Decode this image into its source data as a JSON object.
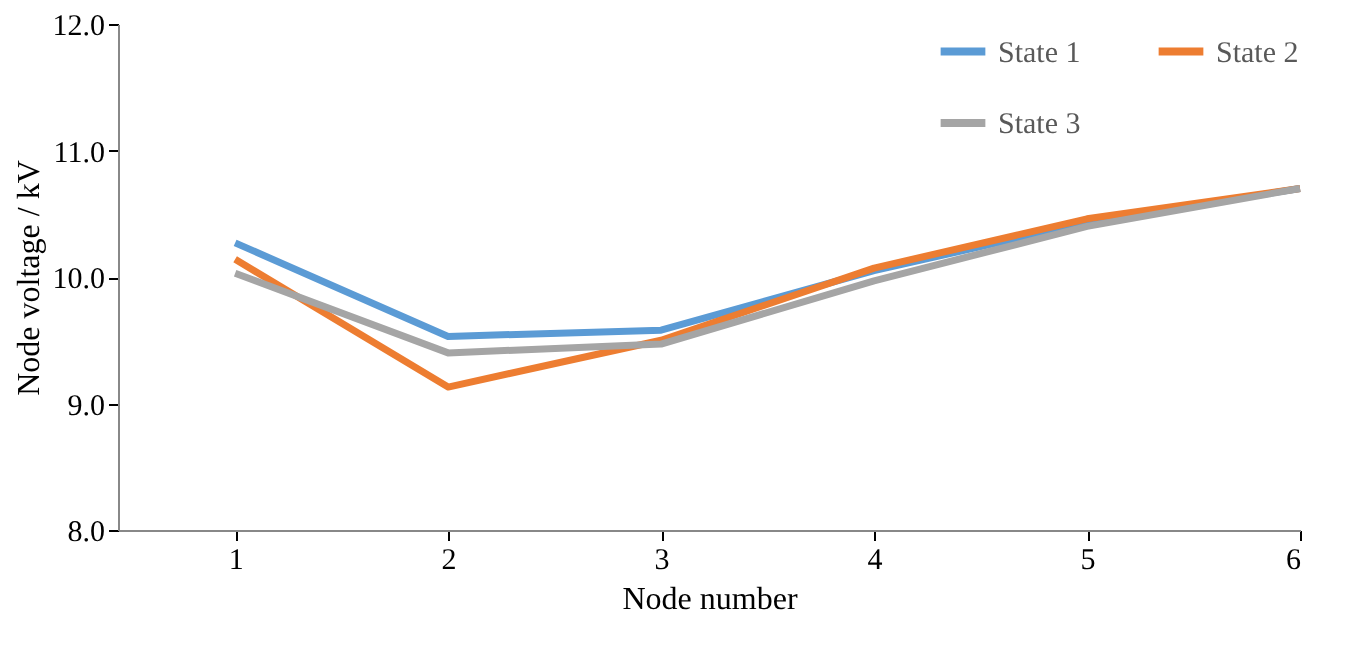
{
  "chart_data": {
    "type": "line",
    "xlabel": "Node number",
    "ylabel": "Node voltage / kV",
    "x": [
      1,
      2,
      3,
      4,
      5,
      6
    ],
    "xlim": [
      0.45,
      6
    ],
    "xticks": [
      1,
      2,
      3,
      4,
      5,
      6
    ],
    "ylim": [
      8,
      12
    ],
    "yticks": [
      {
        "value": 8,
        "label": "8.0"
      },
      {
        "value": 9,
        "label": "9.0"
      },
      {
        "value": 10,
        "label": "10.0"
      },
      {
        "value": 11,
        "label": "11.0"
      },
      {
        "value": 12,
        "label": "12.0"
      }
    ],
    "series": [
      {
        "name": "State 1",
        "color": "#5b9bd5",
        "values": [
          10.27,
          9.53,
          9.58,
          10.05,
          10.43,
          10.7
        ]
      },
      {
        "name": "State 2",
        "color": "#ed7d31",
        "values": [
          10.14,
          9.13,
          9.5,
          10.07,
          10.46,
          10.7
        ]
      },
      {
        "name": "State 3",
        "color": "#a5a5a5",
        "values": [
          10.03,
          9.4,
          9.47,
          9.97,
          10.4,
          10.7
        ]
      }
    ],
    "legend": "top right",
    "grid": false,
    "marker": "none",
    "line_style": "solid"
  }
}
